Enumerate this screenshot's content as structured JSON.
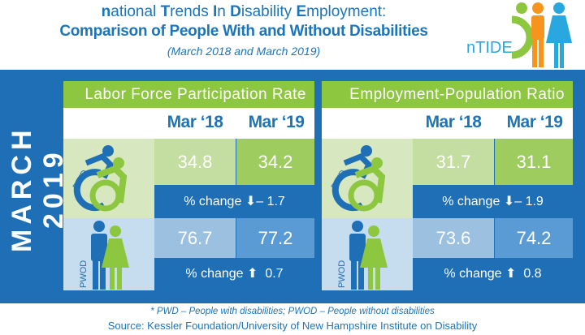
{
  "header": {
    "title_line1_parts": [
      [
        "n",
        "ational "
      ],
      [
        "T",
        "rends "
      ],
      [
        "I",
        "n "
      ],
      [
        "D",
        "isability "
      ],
      [
        "E",
        "mployment:"
      ]
    ],
    "title_line2": "Comparison of People With and Without Disabilities",
    "subtitle": "(March 2018 and March 2019)",
    "logo_text": "nTIDE"
  },
  "side_label": "MARCH 2019",
  "col_labels": [
    "Mar ‘18",
    "Mar ‘19"
  ],
  "panels": [
    {
      "title": "Labor Force Participation Rate",
      "pwd": {
        "label": "PWD",
        "mar18": "34.8",
        "mar19": "34.2",
        "change_label": "% change",
        "change_dir": "down",
        "change": "– 1.7"
      },
      "pwod": {
        "label": "PWOD",
        "mar18": "76.7",
        "mar19": "77.2",
        "change_label": "% change",
        "change_dir": "up",
        "change": "0.7"
      }
    },
    {
      "title": "Employment-Population Ratio",
      "pwd": {
        "label": "PWD",
        "mar18": "31.7",
        "mar19": "31.1",
        "change_label": "% change",
        "change_dir": "down",
        "change": "– 1.9"
      },
      "pwod": {
        "label": "PWOD",
        "mar18": "73.6",
        "mar19": "74.2",
        "change_label": "% change",
        "change_dir": "up",
        "change": "0.8"
      }
    }
  ],
  "footnote": "* PWD – People with disabilities;  PWOD – People without disabilities",
  "source": "Source: Kessler Foundation/University of New Hampshire Institute on Disability",
  "colors": {
    "blue": "#1e6fb5",
    "green": "#8dc63f",
    "orange": "#f7941d",
    "light_blue": "#29a8e0"
  }
}
